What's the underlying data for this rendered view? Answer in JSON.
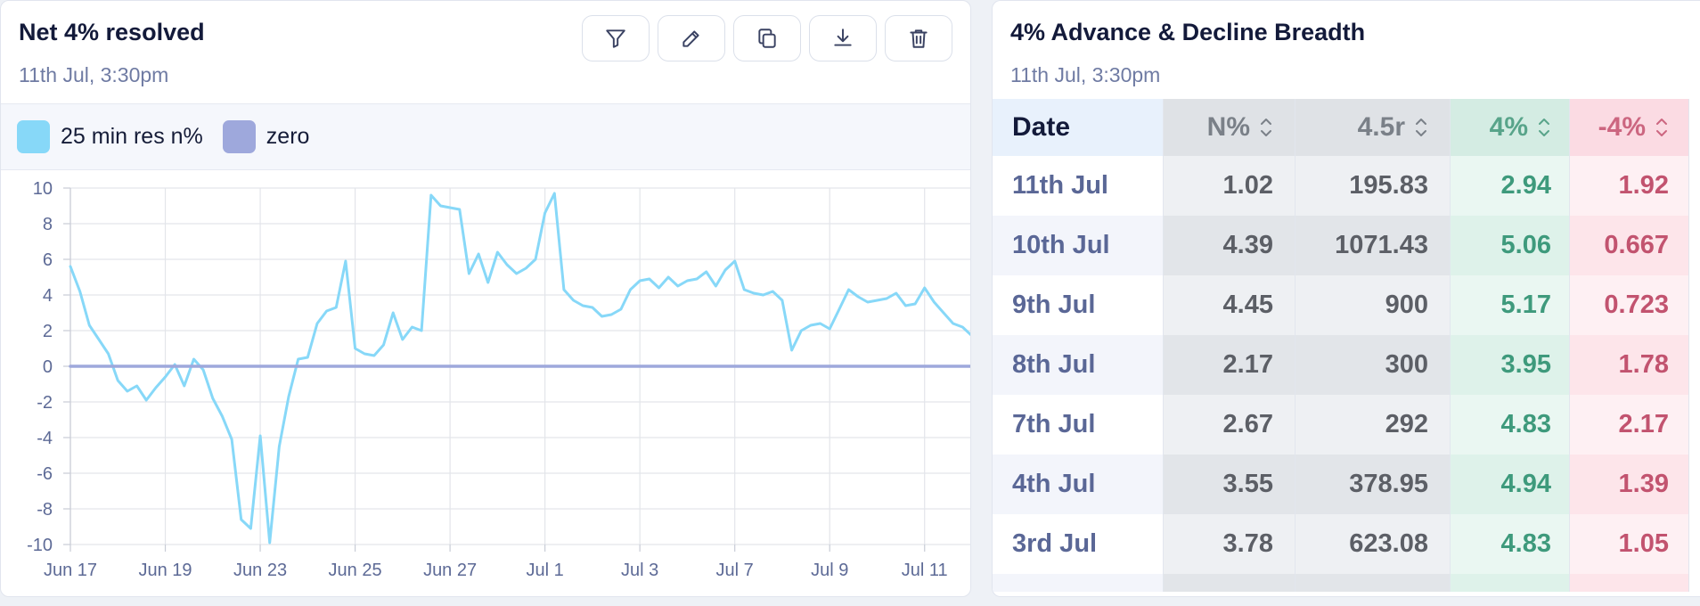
{
  "left_card": {
    "title": "Net 4% resolved",
    "subtitle": "11th Jul, 3:30pm",
    "toolbar": [
      {
        "name": "filter-icon"
      },
      {
        "name": "edit-icon"
      },
      {
        "name": "copy-icon"
      },
      {
        "name": "download-icon"
      },
      {
        "name": "trash-icon"
      }
    ],
    "legend": [
      {
        "label": "25 min res n%",
        "color": "#87d8f8"
      },
      {
        "label": "zero",
        "color": "#9ea8dc"
      }
    ]
  },
  "chart_data": {
    "type": "line",
    "ylim": [
      -10,
      10
    ],
    "yticks": [
      "10",
      "8",
      "6",
      "4",
      "2",
      "0",
      "-2",
      "-4",
      "-6",
      "-8",
      "-10"
    ],
    "xtick_labels": [
      "Jun 17",
      "Jun 19",
      "Jun 23",
      "Jun 25",
      "Jun 27",
      "Jul 1",
      "Jul 3",
      "Jul 7",
      "Jul 9",
      "Jul 11"
    ],
    "grid": true,
    "series": [
      {
        "name": "25 min res n%",
        "color": "#87d8f8",
        "x": [
          0,
          0.1,
          0.2,
          0.3,
          0.4,
          0.5,
          0.6,
          0.7,
          0.8,
          0.9,
          1,
          1.1,
          1.2,
          1.3,
          1.4,
          1.5,
          1.6,
          1.7,
          1.8,
          1.9,
          2,
          2.1,
          2.2,
          2.3,
          2.4,
          2.5,
          2.6,
          2.7,
          2.8,
          2.9,
          3,
          3.1,
          3.2,
          3.3,
          3.4,
          3.5,
          3.6,
          3.7,
          3.8,
          3.9,
          4,
          4.1,
          4.2,
          4.3,
          4.4,
          4.5,
          4.6,
          4.7,
          4.8,
          4.9,
          5,
          5.1,
          5.2,
          5.3,
          5.4,
          5.5,
          5.6,
          5.7,
          5.8,
          5.9,
          6,
          6.1,
          6.2,
          6.3,
          6.4,
          6.5,
          6.6,
          6.7,
          6.8,
          6.9,
          7,
          7.1,
          7.2,
          7.3,
          7.4,
          7.5,
          7.6,
          7.7,
          7.8,
          7.9,
          8,
          8.1,
          8.2,
          8.3,
          8.4,
          8.5,
          8.6,
          8.7,
          8.8,
          8.9,
          9,
          9.1,
          9.2,
          9.3,
          9.4,
          9.5
        ],
        "values": [
          5.6,
          4.2,
          2.3,
          1.5,
          0.7,
          -0.8,
          -1.4,
          -1.1,
          -1.9,
          -1.2,
          -0.6,
          0.1,
          -1.1,
          0.4,
          -0.2,
          -1.8,
          -2.8,
          -4.1,
          -8.6,
          -9.1,
          -3.9,
          -9.9,
          -4.5,
          -1.7,
          0.4,
          0.5,
          2.4,
          3.1,
          3.3,
          5.9,
          1.0,
          0.7,
          0.6,
          1.2,
          3.0,
          1.5,
          2.2,
          2.0,
          9.6,
          9.0,
          8.9,
          8.8,
          5.2,
          6.3,
          4.7,
          6.4,
          5.7,
          5.2,
          5.5,
          6.0,
          8.6,
          9.7,
          4.3,
          3.7,
          3.4,
          3.3,
          2.8,
          2.9,
          3.2,
          4.3,
          4.8,
          4.9,
          4.4,
          5.0,
          4.5,
          4.8,
          4.9,
          5.3,
          4.5,
          5.4,
          5.9,
          4.3,
          4.1,
          4.0,
          4.2,
          3.7,
          0.9,
          2.0,
          2.3,
          2.4,
          2.1,
          3.2,
          4.3,
          3.9,
          3.6,
          3.7,
          3.8,
          4.1,
          3.4,
          3.5,
          4.4,
          3.6,
          3.0,
          2.4,
          2.2,
          1.7
        ]
      },
      {
        "name": "zero",
        "color": "#9ea8dc",
        "x": [
          0,
          9.5
        ],
        "values": [
          0,
          0
        ]
      }
    ]
  },
  "right_card": {
    "title": "4% Advance & Decline Breadth",
    "subtitle": "11th Jul, 3:30pm",
    "columns": [
      "Date",
      "N%",
      "4.5r",
      "4%",
      "-4%"
    ],
    "rows": [
      {
        "date": "11th Jul",
        "n": "1.02",
        "r": "195.83",
        "adv": "2.94",
        "dec": "1.92"
      },
      {
        "date": "10th Jul",
        "n": "4.39",
        "r": "1071.43",
        "adv": "5.06",
        "dec": "0.667"
      },
      {
        "date": "9th Jul",
        "n": "4.45",
        "r": "900",
        "adv": "5.17",
        "dec": "0.723"
      },
      {
        "date": "8th Jul",
        "n": "2.17",
        "r": "300",
        "adv": "3.95",
        "dec": "1.78"
      },
      {
        "date": "7th Jul",
        "n": "2.67",
        "r": "292",
        "adv": "4.83",
        "dec": "2.17"
      },
      {
        "date": "4th Jul",
        "n": "3.55",
        "r": "378.95",
        "adv": "4.94",
        "dec": "1.39"
      },
      {
        "date": "3rd Jul",
        "n": "3.78",
        "r": "623.08",
        "adv": "4.83",
        "dec": "1.05"
      }
    ]
  }
}
